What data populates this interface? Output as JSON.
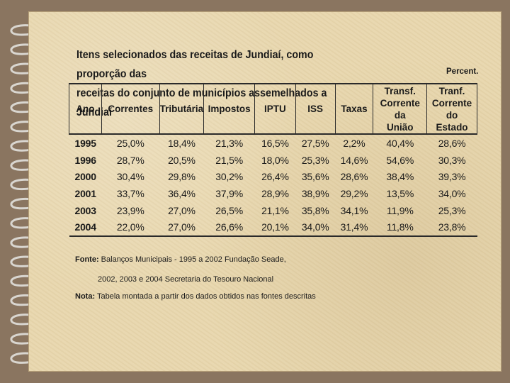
{
  "title_line1": "Itens selecionados das receitas de Jundiaí, como proporção das",
  "title_line2": "receitas do conjunto de municípios assemelhados a Jundiaí",
  "unit_label": "Percent.",
  "columns": [
    [
      "Ano"
    ],
    [
      "Correntes"
    ],
    [
      "Tributária"
    ],
    [
      "Impostos"
    ],
    [
      "IPTU"
    ],
    [
      "ISS"
    ],
    [
      "Taxas"
    ],
    [
      "Transf.",
      "Corrente da",
      "União"
    ],
    [
      "Tranf.",
      "Corrente do",
      "Estado"
    ]
  ],
  "rows": [
    [
      "1995",
      "25,0%",
      "18,4%",
      "21,3%",
      "16,5%",
      "27,5%",
      "2,2%",
      "40,4%",
      "28,6%"
    ],
    [
      "1996",
      "28,7%",
      "20,5%",
      "21,5%",
      "18,0%",
      "25,3%",
      "14,6%",
      "54,6%",
      "30,3%"
    ],
    [
      "2000",
      "30,4%",
      "29,8%",
      "30,2%",
      "26,4%",
      "35,6%",
      "28,6%",
      "38,4%",
      "39,3%"
    ],
    [
      "2001",
      "33,7%",
      "36,4%",
      "37,9%",
      "28,9%",
      "38,9%",
      "29,2%",
      "13,5%",
      "34,0%"
    ],
    [
      "2003",
      "23,9%",
      "27,0%",
      "26,5%",
      "21,1%",
      "35,8%",
      "34,1%",
      "11,9%",
      "25,3%"
    ],
    [
      "2004",
      "22,0%",
      "27,0%",
      "26,6%",
      "20,1%",
      "34,0%",
      "31,4%",
      "11,8%",
      "23,8%"
    ]
  ],
  "source_label": "Fonte:",
  "source_line1": "Balanços Municipais - 1995 a 2002 Fundação Seade,",
  "source_line2": "2002, 2003 e 2004 Secretaria do Tesouro Nacional",
  "note_label": "Nota:",
  "note_text": "Tabela montada a partir dos dados obtidos nas fontes descritas",
  "colors": {
    "paper": "#e8d7ae",
    "frame": "#8a7560",
    "text": "#1a1a1a"
  },
  "decoration_icon": "spiral-binding-icon"
}
